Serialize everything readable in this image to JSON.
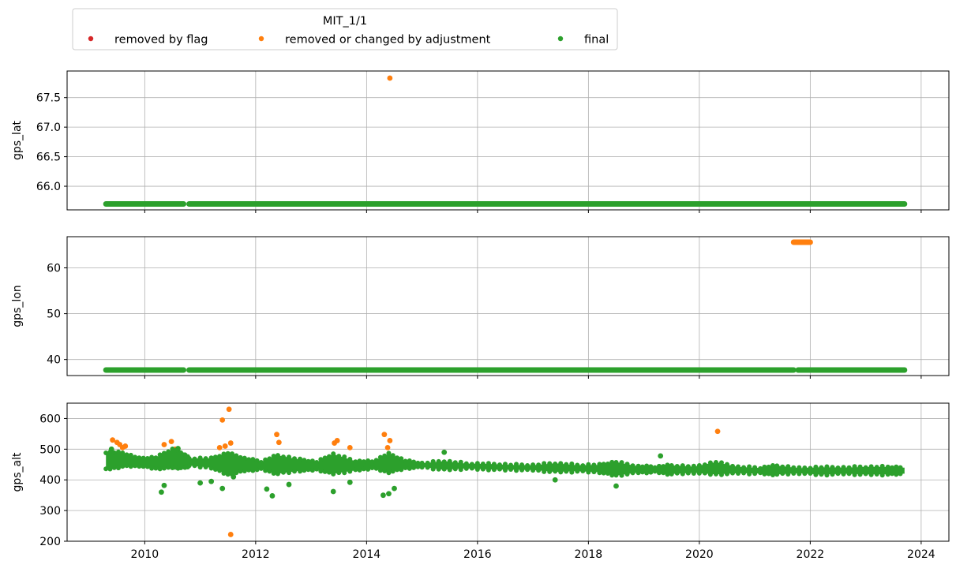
{
  "legend": {
    "title": "MIT_1/1",
    "entries": [
      {
        "label": "removed by flag",
        "color": "#d62728"
      },
      {
        "label": "removed or changed by adjustment",
        "color": "#ff7f0e"
      },
      {
        "label": "final",
        "color": "#2ca02c"
      }
    ]
  },
  "chart_data": [
    {
      "type": "scatter",
      "ylabel": "gps_lat",
      "xlim": [
        2008.6,
        2024.5
      ],
      "ylim": [
        65.6,
        67.95
      ],
      "yticks": [
        66.0,
        66.5,
        67.0,
        67.5
      ],
      "ytick_labels": [
        "66.0",
        "66.5",
        "67.0",
        "67.5"
      ],
      "grid": true,
      "series": [
        {
          "name": "final",
          "color": "#2ca02c",
          "segments": [
            {
              "x_range": [
                2009.3,
                2010.7
              ],
              "y": 65.7
            },
            {
              "x_range": [
                2010.8,
                2023.7
              ],
              "y": 65.7
            }
          ]
        },
        {
          "name": "removed or changed by adjustment",
          "color": "#ff7f0e",
          "points": [
            [
              2014.42,
              67.83
            ]
          ]
        }
      ]
    },
    {
      "type": "scatter",
      "ylabel": "gps_lon",
      "xlim": [
        2008.6,
        2024.5
      ],
      "ylim": [
        36.5,
        66.8
      ],
      "yticks": [
        40,
        50,
        60
      ],
      "ytick_labels": [
        "40",
        "50",
        "60"
      ],
      "grid": true,
      "series": [
        {
          "name": "final",
          "color": "#2ca02c",
          "segments": [
            {
              "x_range": [
                2009.3,
                2010.7
              ],
              "y": 37.7
            },
            {
              "x_range": [
                2010.8,
                2021.7
              ],
              "y": 37.7
            },
            {
              "x_range": [
                2021.78,
                2023.7
              ],
              "y": 37.7
            }
          ]
        },
        {
          "name": "removed or changed by adjustment",
          "color": "#ff7f0e",
          "segments": [
            {
              "x_range": [
                2021.7,
                2022.0
              ],
              "y": 65.6
            }
          ]
        }
      ]
    },
    {
      "type": "scatter",
      "ylabel": "gps_alt",
      "xlim": [
        2008.6,
        2024.5
      ],
      "ylim": [
        200,
        650
      ],
      "yticks": [
        200,
        300,
        400,
        500,
        600
      ],
      "ytick_labels": [
        "200",
        "300",
        "400",
        "500",
        "600"
      ],
      "xticks": [
        2010,
        2012,
        2014,
        2016,
        2018,
        2020,
        2022,
        2024
      ],
      "xtick_labels": [
        "2010",
        "2012",
        "2014",
        "2016",
        "2018",
        "2020",
        "2022",
        "2024"
      ],
      "grid": true,
      "series": [
        {
          "name": "final",
          "color": "#2ca02c",
          "band": [
            [
              2009.3,
              462,
              28
            ],
            [
              2009.6,
              466,
              22
            ],
            [
              2009.9,
              458,
              12
            ],
            [
              2010.2,
              455,
              18
            ],
            [
              2010.5,
              470,
              30
            ],
            [
              2010.7,
              462,
              22
            ],
            [
              2010.8,
              458,
              12
            ],
            [
              2011.2,
              455,
              15
            ],
            [
              2011.5,
              452,
              35
            ],
            [
              2011.8,
              450,
              20
            ],
            [
              2012.1,
              447,
              12
            ],
            [
              2012.4,
              450,
              30
            ],
            [
              2012.8,
              448,
              18
            ],
            [
              2013.1,
              446,
              12
            ],
            [
              2013.4,
              452,
              32
            ],
            [
              2013.8,
              446,
              15
            ],
            [
              2014.1,
              449,
              10
            ],
            [
              2014.4,
              455,
              30
            ],
            [
              2014.7,
              450,
              12
            ],
            [
              2015.0,
              448,
              6
            ],
            [
              2015.4,
              447,
              14
            ],
            [
              2015.8,
              445,
              8
            ],
            [
              2016.2,
              443,
              9
            ],
            [
              2016.6,
              441,
              8
            ],
            [
              2017.0,
              440,
              8
            ],
            [
              2017.4,
              440,
              14
            ],
            [
              2017.8,
              438,
              10
            ],
            [
              2018.2,
              437,
              12
            ],
            [
              2018.5,
              436,
              22
            ],
            [
              2018.9,
              434,
              10
            ],
            [
              2019.2,
              434,
              8
            ],
            [
              2019.5,
              433,
              14
            ],
            [
              2019.9,
              433,
              10
            ],
            [
              2020.3,
              438,
              20
            ],
            [
              2020.7,
              432,
              10
            ],
            [
              2021.1,
              430,
              9
            ],
            [
              2021.4,
              432,
              14
            ],
            [
              2021.8,
              430,
              8
            ],
            [
              2022.2,
              429,
              12
            ],
            [
              2022.6,
              430,
              10
            ],
            [
              2023.0,
              430,
              12
            ],
            [
              2023.4,
              430,
              12
            ],
            [
              2023.7,
              430,
              10
            ]
          ],
          "points": [
            [
              2010.3,
              360
            ],
            [
              2010.35,
              382
            ],
            [
              2011.4,
              372
            ],
            [
              2012.3,
              348
            ],
            [
              2012.2,
              370
            ],
            [
              2013.4,
              362
            ],
            [
              2014.3,
              350
            ],
            [
              2014.4,
              355
            ],
            [
              2014.5,
              372
            ],
            [
              2011.0,
              390
            ],
            [
              2011.2,
              395
            ],
            [
              2018.5,
              380
            ],
            [
              2017.4,
              400
            ],
            [
              2019.3,
              478
            ],
            [
              2015.4,
              490
            ],
            [
              2013.7,
              392
            ],
            [
              2012.6,
              385
            ],
            [
              2011.6,
              410
            ],
            [
              2009.4,
              500
            ],
            [
              2010.6,
              502
            ]
          ]
        },
        {
          "name": "removed or changed by adjustment",
          "color": "#ff7f0e",
          "points": [
            [
              2009.42,
              530
            ],
            [
              2009.5,
              522
            ],
            [
              2009.55,
              515
            ],
            [
              2009.6,
              505
            ],
            [
              2009.65,
              510
            ],
            [
              2010.35,
              515
            ],
            [
              2010.48,
              525
            ],
            [
              2010.55,
              500
            ],
            [
              2011.35,
              505
            ],
            [
              2011.4,
              595
            ],
            [
              2011.45,
              510
            ],
            [
              2011.52,
              630
            ],
            [
              2011.55,
              520
            ],
            [
              2011.55,
              222
            ],
            [
              2012.38,
              548
            ],
            [
              2012.42,
              522
            ],
            [
              2013.42,
              520
            ],
            [
              2013.47,
              528
            ],
            [
              2013.7,
              505
            ],
            [
              2014.32,
              548
            ],
            [
              2014.42,
              528
            ],
            [
              2014.38,
              505
            ],
            [
              2020.33,
              558
            ]
          ]
        }
      ]
    }
  ]
}
